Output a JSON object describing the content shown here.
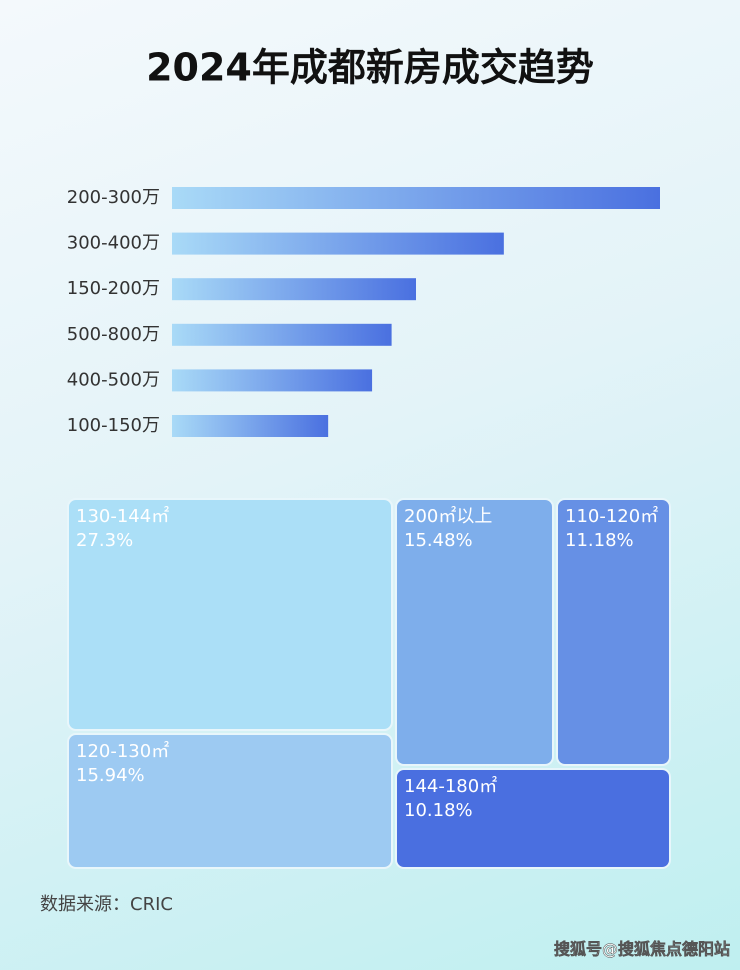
{
  "chart_data": [
    {
      "type": "bar",
      "title": "2024年成都新房成交趋势",
      "categories": [
        "200-300万",
        "300-400万",
        "150-200万",
        "500-800万",
        "400-500万",
        "100-150万"
      ],
      "values": [
        100,
        68,
        50,
        45,
        41,
        32
      ],
      "color": [
        "#a9daf7",
        "#4a70e0"
      ]
    },
    {
      "type": "treemap",
      "categories": [
        "130-144㎡",
        "120-130㎡",
        "200㎡以上",
        "110-120㎡",
        "144-180㎡"
      ],
      "values": [
        27.3,
        15.94,
        15.48,
        11.18,
        10.18
      ],
      "value_labels": [
        "27.3%",
        "15.94%",
        "15.48%",
        "11.18%",
        "10.18%"
      ],
      "colors": [
        "#abdff7",
        "#9dcaf2",
        "#7eaeeb",
        "#6690e5",
        "#4a6fe0"
      ]
    }
  ],
  "source": "数据来源：CRIC",
  "watermark": "搜狐号@搜狐焦点德阳站"
}
